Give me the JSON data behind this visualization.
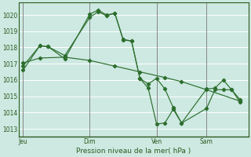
{
  "background_color": "#cde9e2",
  "plot_bg_color": "#cde9e2",
  "grid_color": "#ffffff",
  "line_color": "#2d6e2d",
  "xlabel": "Pression niveau de la mer( hPa )",
  "ylim": [
    1012.5,
    1020.75
  ],
  "yticks": [
    1013,
    1014,
    1015,
    1016,
    1017,
    1018,
    1019,
    1020
  ],
  "xtick_labels": [
    "Jeu",
    "Dim",
    "Ven",
    "Sam"
  ],
  "xtick_positions": [
    0,
    8,
    16,
    22
  ],
  "xlim": [
    -0.5,
    27
  ],
  "series1_x": [
    0,
    2,
    3,
    5,
    8,
    9,
    10,
    11,
    12,
    13,
    14,
    15,
    16,
    17,
    18,
    19,
    22,
    23,
    24,
    25,
    26
  ],
  "series1_y": [
    1016.6,
    1018.1,
    1018.05,
    1017.5,
    1019.85,
    1020.2,
    1019.95,
    1020.1,
    1018.5,
    1018.4,
    1016.1,
    1015.75,
    1016.1,
    1015.45,
    1014.3,
    1013.35,
    1015.45,
    1015.5,
    1016.0,
    1015.4,
    1014.8
  ],
  "series2_x": [
    0,
    2,
    3,
    5,
    8,
    9,
    10,
    11,
    12,
    13,
    14,
    15,
    16,
    17,
    18,
    19,
    22,
    23,
    24,
    25,
    26
  ],
  "series2_y": [
    1016.85,
    1018.1,
    1018.05,
    1017.3,
    1020.05,
    1020.3,
    1020.0,
    1020.1,
    1018.45,
    1018.4,
    1016.1,
    1015.5,
    1013.3,
    1013.35,
    1014.2,
    1013.35,
    1014.25,
    1015.4,
    1015.4,
    1015.4,
    1014.65
  ],
  "series3_x": [
    0,
    2,
    5,
    8,
    11,
    14,
    17,
    19,
    22,
    26
  ],
  "series3_y": [
    1017.05,
    1017.35,
    1017.4,
    1017.2,
    1016.85,
    1016.5,
    1016.15,
    1015.9,
    1015.4,
    1014.7
  ]
}
